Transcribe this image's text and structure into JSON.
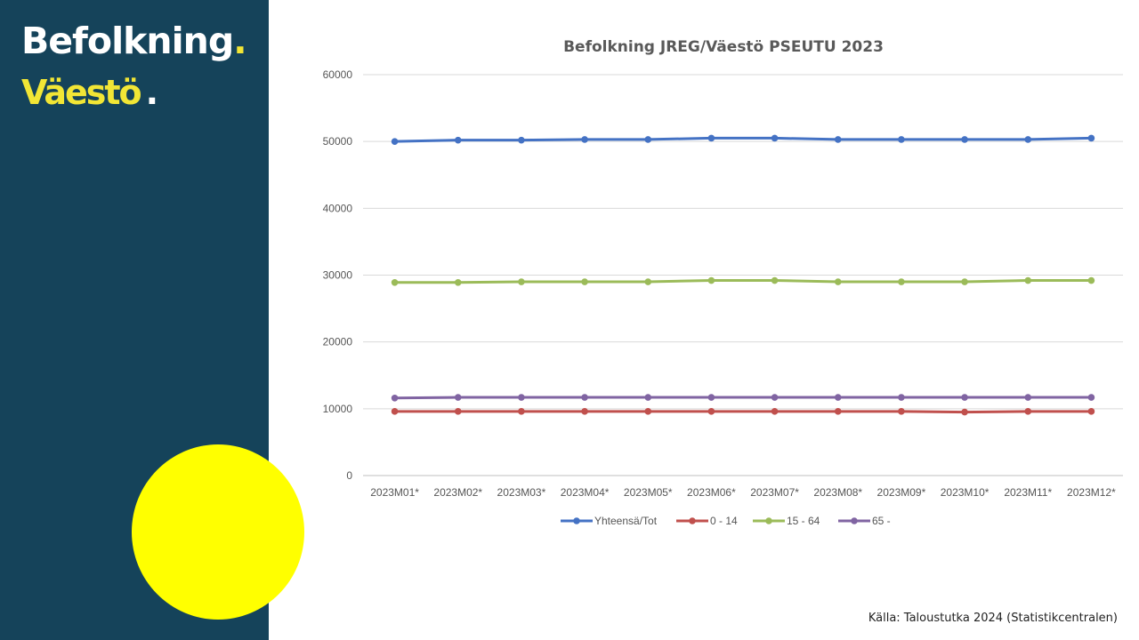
{
  "header": {
    "title_sv": "Befolkning",
    "title_fi": "Väestö",
    "dot": "."
  },
  "footer": {
    "source": "Källa: Taloustutka 2024 (Statistikcentralen)"
  },
  "colors": {
    "sidebar": "#15435a",
    "accent_yellow": "#f2e635",
    "circle": "#ffff00"
  },
  "chart_data": {
    "type": "line",
    "title": "Befolkning JREG/Väestö PSEUTU 2023",
    "xlabel": "",
    "ylabel": "",
    "ylim": [
      0,
      60000
    ],
    "yticks": [
      0,
      10000,
      20000,
      30000,
      40000,
      50000,
      60000
    ],
    "grid": true,
    "legend": "bottom",
    "categories": [
      "2023M01*",
      "2023M02*",
      "2023M03*",
      "2023M04*",
      "2023M05*",
      "2023M06*",
      "2023M07*",
      "2023M08*",
      "2023M09*",
      "2023M10*",
      "2023M11*",
      "2023M12*"
    ],
    "series": [
      {
        "name": "Yhteensä/Tot",
        "color": "#4472c4",
        "values": [
          50000,
          50200,
          50200,
          50300,
          50300,
          50500,
          50500,
          50300,
          50300,
          50300,
          50300,
          50500
        ]
      },
      {
        "name": "0 - 14",
        "color": "#c0504d",
        "values": [
          9600,
          9600,
          9600,
          9600,
          9600,
          9600,
          9600,
          9600,
          9600,
          9500,
          9600,
          9600
        ]
      },
      {
        "name": "15 - 64",
        "color": "#9bbb59",
        "values": [
          28900,
          28900,
          29000,
          29000,
          29000,
          29200,
          29200,
          29000,
          29000,
          29000,
          29200,
          29200
        ]
      },
      {
        "name": "65 -",
        "color": "#8064a2",
        "values": [
          11600,
          11700,
          11700,
          11700,
          11700,
          11700,
          11700,
          11700,
          11700,
          11700,
          11700,
          11700
        ]
      }
    ]
  }
}
